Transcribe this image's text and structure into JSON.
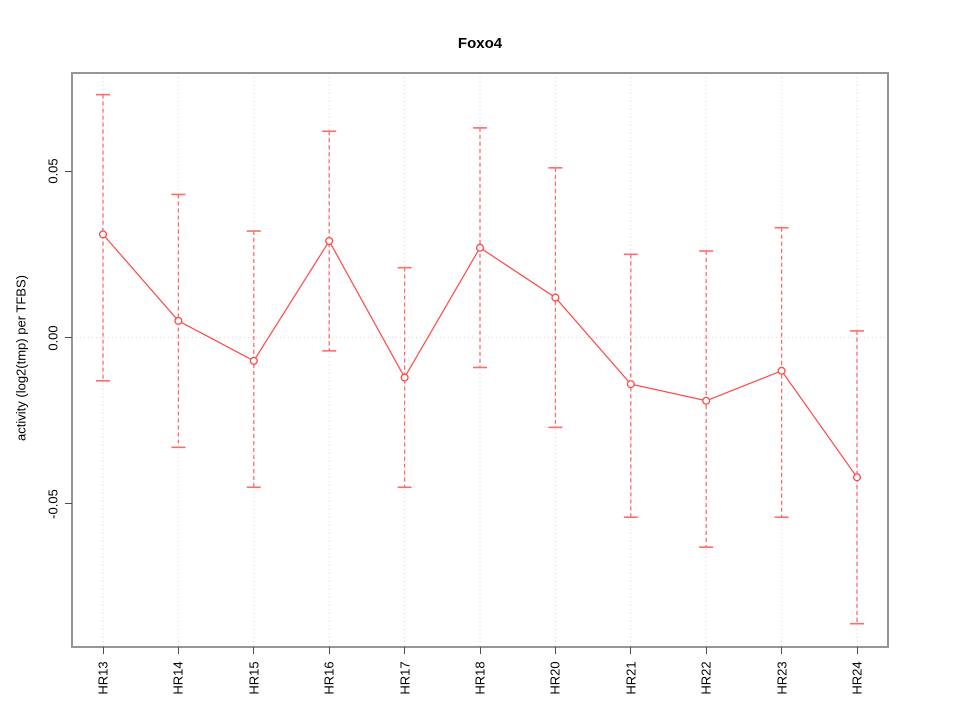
{
  "figure": {
    "title": "Foxo4",
    "ylabel": "activity (log2(tmp) per TFBS)"
  },
  "chart_data": {
    "type": "line",
    "title": "Foxo4",
    "xlabel": "",
    "ylabel": "activity (log2(tmp) per TFBS)",
    "categories": [
      "HR13",
      "HR14",
      "HR15",
      "HR16",
      "HR17",
      "HR18",
      "HR20",
      "HR21",
      "HR22",
      "HR23",
      "HR24"
    ],
    "series": [
      {
        "name": "activity",
        "values": [
          0.031,
          0.005,
          -0.007,
          0.029,
          -0.012,
          0.027,
          0.012,
          -0.014,
          -0.019,
          -0.01,
          -0.042
        ],
        "upper": [
          0.073,
          0.043,
          0.032,
          0.062,
          0.021,
          0.063,
          0.051,
          0.025,
          0.026,
          0.033,
          0.002
        ],
        "lower": [
          -0.013,
          -0.033,
          -0.045,
          -0.004,
          -0.045,
          -0.009,
          -0.027,
          -0.054,
          -0.063,
          -0.054,
          -0.086
        ]
      }
    ],
    "error_bars": true,
    "marker": "open-circle",
    "legend_position": "none",
    "yticks": [
      0.05,
      0,
      -0.05
    ],
    "ytick_labels": [
      "0.05",
      "0.00",
      "-0.05"
    ],
    "ylim": [
      -0.093,
      0.0795
    ],
    "grid": "dotted vertical line per category, dotted horizontal line at 0",
    "colors": {
      "series_line": "#ff4747",
      "error_bar": "#ff6b6b",
      "marker_stroke": "#ff4747",
      "marker_fill": "#ffffff",
      "grid_line": "#d6d6d6",
      "box_border": "#969696",
      "tick": "#4d4d4d",
      "text": "#000000"
    }
  }
}
